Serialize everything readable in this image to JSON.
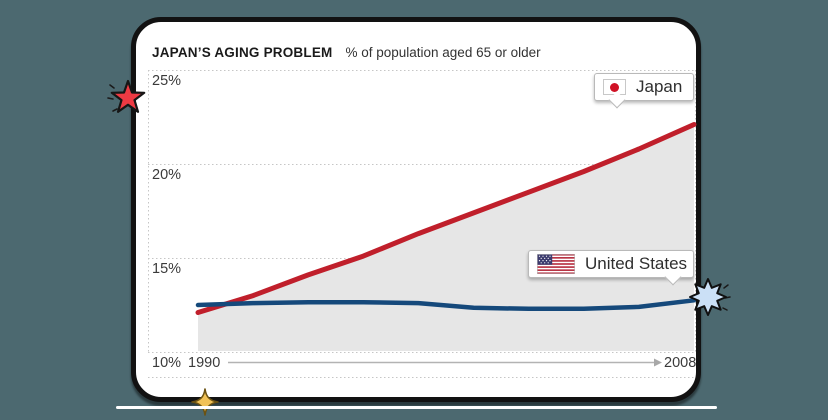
{
  "window": {
    "background_color": "#4c6970",
    "card_background": "#ffffff",
    "card_border_color": "#121212"
  },
  "header": {
    "title": "JAPAN’S AGING PROBLEM",
    "subtitle": "% of population aged 65 or older"
  },
  "axis": {
    "y_tick_labels": [
      "25%",
      "20%",
      "15%",
      "10%"
    ],
    "x_start": "1990",
    "x_end": "2008"
  },
  "legend": {
    "japan": {
      "label": "Japan",
      "flag": "japan-flag"
    },
    "united_states": {
      "label": "United States",
      "flag": "us-flag"
    }
  },
  "chart_data": {
    "type": "area",
    "title": "JAPAN’S AGING PROBLEM",
    "subtitle": "% of population aged 65 or older",
    "x": [
      1990,
      1992,
      1994,
      1996,
      1998,
      2000,
      2002,
      2004,
      2006,
      2008
    ],
    "series": [
      {
        "name": "Japan",
        "color": "#c01f2b",
        "area_fill": "#e6e6e6",
        "values": [
          12.1,
          13.0,
          14.1,
          15.1,
          16.3,
          17.4,
          18.5,
          19.6,
          20.8,
          22.1
        ]
      },
      {
        "name": "United States",
        "color": "#15497b",
        "values": [
          12.5,
          12.6,
          12.65,
          12.65,
          12.6,
          12.35,
          12.3,
          12.3,
          12.4,
          12.75
        ]
      }
    ],
    "ylim": [
      10,
      25
    ],
    "ytick_values": [
      25,
      20,
      15,
      10
    ],
    "xlabel_start": "1990",
    "xlabel_end": "2008",
    "grid": "dotted-horizontal",
    "legend_position": "callout-labels-on-chart"
  },
  "decorations": {
    "stars": [
      {
        "name": "red-star",
        "color": "#ee3a43"
      },
      {
        "name": "blue-burst",
        "color": "#cbe0f6"
      },
      {
        "name": "gold-sparkle",
        "color": "#f1c257"
      }
    ]
  }
}
